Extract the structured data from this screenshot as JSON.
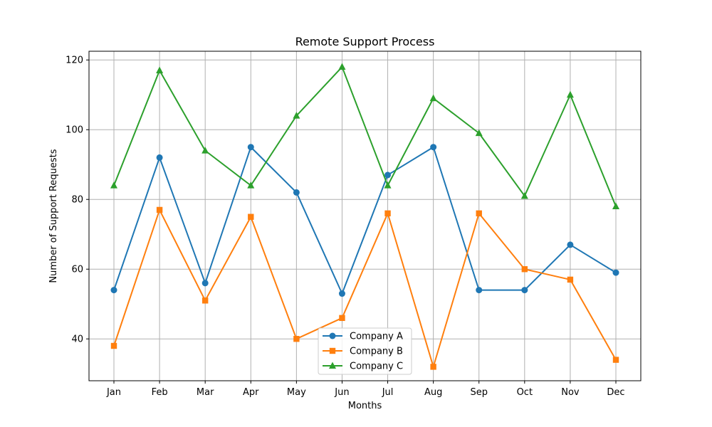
{
  "chart_data": {
    "type": "line",
    "title": "Remote Support Process",
    "xlabel": "Months",
    "ylabel": "Number of Support Requests",
    "categories": [
      "Jan",
      "Feb",
      "Mar",
      "Apr",
      "May",
      "Jun",
      "Jul",
      "Aug",
      "Sep",
      "Oct",
      "Nov",
      "Dec"
    ],
    "yticks": [
      40,
      60,
      80,
      100,
      120
    ],
    "ylim": [
      28,
      122.5
    ],
    "grid": true,
    "legend_position": "bottom-center",
    "series": [
      {
        "name": "Company A",
        "color": "#1f77b4",
        "marker": "circle",
        "values": [
          54,
          92,
          56,
          95,
          82,
          53,
          87,
          95,
          54,
          54,
          67,
          59
        ]
      },
      {
        "name": "Company B",
        "color": "#ff7f0e",
        "marker": "square",
        "values": [
          38,
          77,
          51,
          75,
          40,
          46,
          76,
          32,
          76,
          60,
          57,
          34
        ]
      },
      {
        "name": "Company C",
        "color": "#2ca02c",
        "marker": "triangle",
        "values": [
          84,
          117,
          94,
          84,
          104,
          118,
          84,
          109,
          99,
          81,
          110,
          78
        ]
      }
    ]
  }
}
